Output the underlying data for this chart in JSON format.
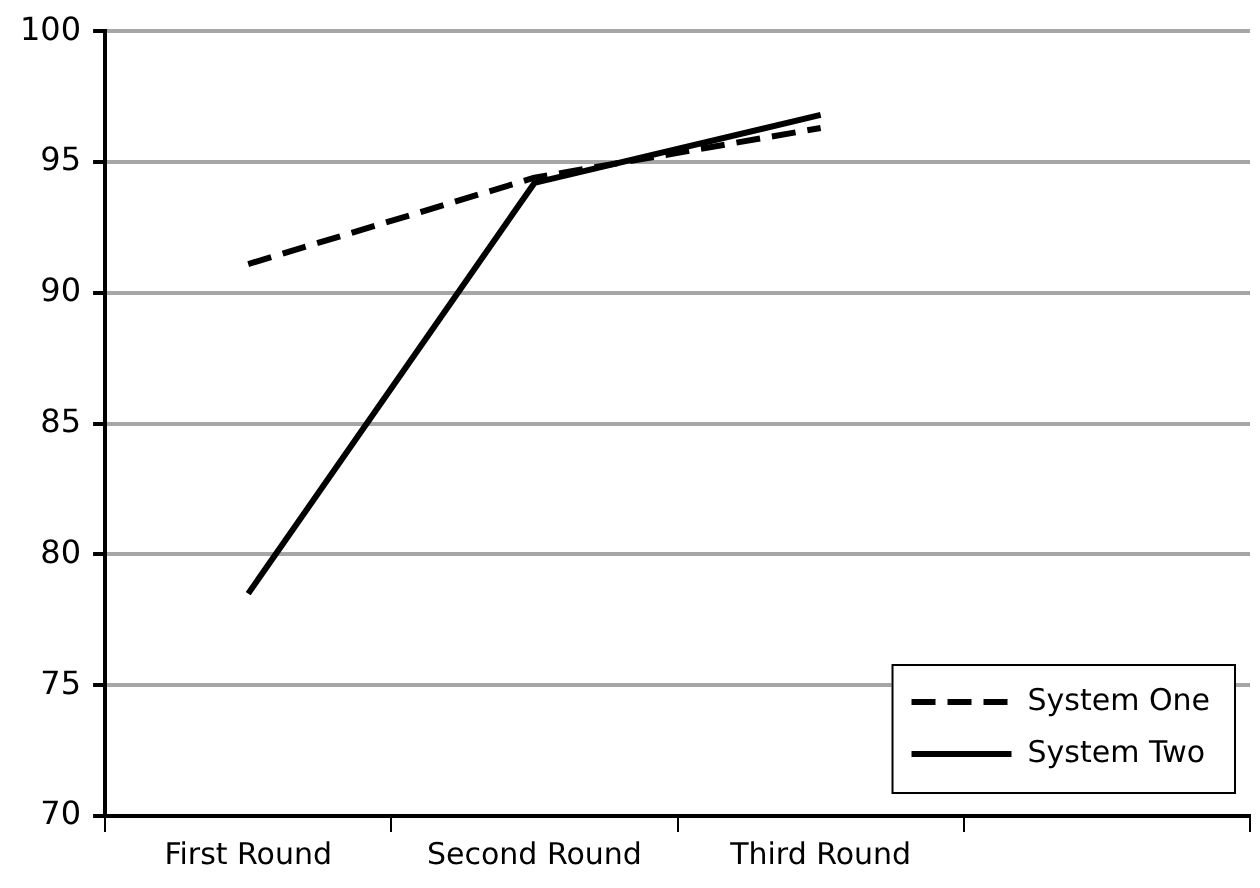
{
  "chart_data": {
    "type": "line",
    "categories": [
      "First Round",
      "Second Round",
      "Third Round",
      null
    ],
    "series": [
      {
        "name": "System One",
        "color": "#000000",
        "line_style": "dashed",
        "values": [
          91.1,
          94.4,
          96.3,
          null
        ]
      },
      {
        "name": "System Two",
        "color": "#000000",
        "line_style": "solid",
        "values": [
          78.5,
          94.2,
          96.8,
          null
        ]
      }
    ],
    "ylim": [
      70,
      100
    ],
    "yticks": [
      70,
      75,
      80,
      85,
      90,
      95,
      100
    ],
    "grid": "y",
    "legend": "bottom right",
    "marker": "none"
  }
}
